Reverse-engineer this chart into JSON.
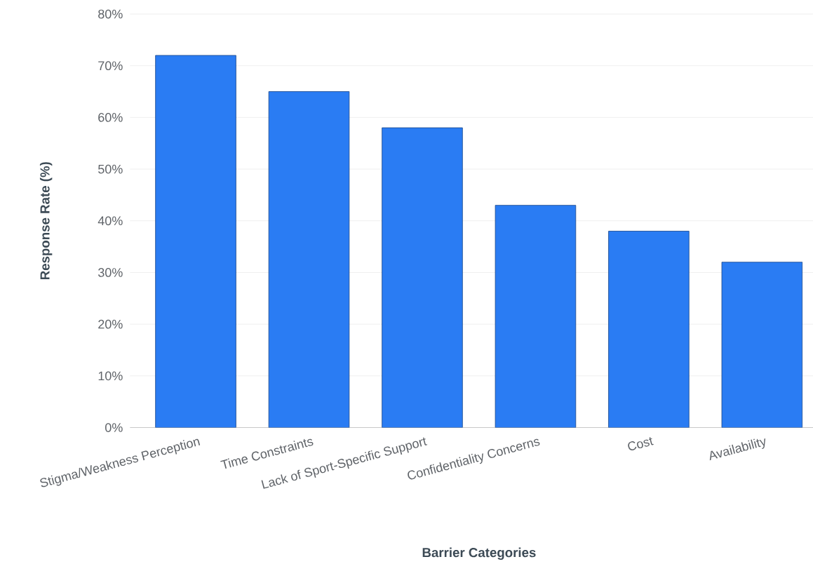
{
  "chart_data": {
    "type": "bar",
    "xlabel": "Barrier Categories",
    "ylabel": "Response Rate (%)",
    "categories": [
      "Stigma/Weakness Perception",
      "Time Constraints",
      "Lack of Sport-Specific Support",
      "Confidentiality Concerns",
      "Cost",
      "Availability"
    ],
    "values": [
      72,
      65,
      58,
      43,
      38,
      32
    ],
    "color": "#2a7cf3",
    "ylim": [
      0,
      80
    ],
    "yticks": [
      {
        "value": 0,
        "label": "0%"
      },
      {
        "value": 10,
        "label": "10%"
      },
      {
        "value": 20,
        "label": "20%"
      },
      {
        "value": 30,
        "label": "30%"
      },
      {
        "value": 40,
        "label": "40%"
      },
      {
        "value": 50,
        "label": "50%"
      },
      {
        "value": 60,
        "label": "60%"
      },
      {
        "value": 70,
        "label": "70%"
      },
      {
        "value": 80,
        "label": "80%"
      }
    ],
    "grid": "y"
  }
}
